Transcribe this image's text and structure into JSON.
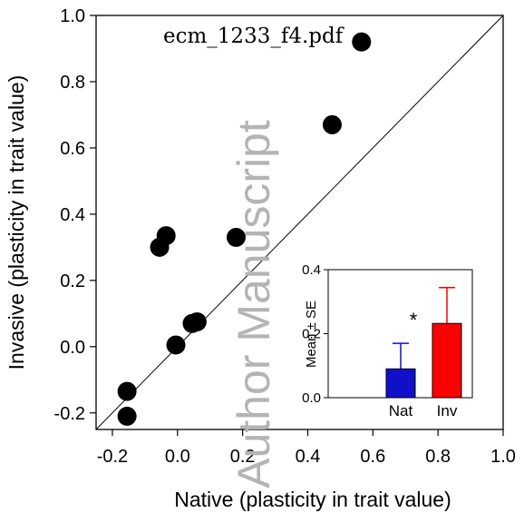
{
  "file_label": "ecm_1233_f4.pdf",
  "watermark": "Author Manuscript",
  "chart_data": [
    {
      "type": "scatter",
      "xlabel": "Native (plasticity in trait value)",
      "ylabel": "Invasive (plasticity in trait value)",
      "xlim": [
        -0.25,
        1.0
      ],
      "ylim": [
        -0.25,
        1.0
      ],
      "xticks": [
        -0.2,
        0.0,
        0.2,
        0.4,
        0.6,
        0.8,
        1.0
      ],
      "xtick_labels": [
        "-0.2",
        "0.0",
        "0.2",
        "0.4",
        "0.6",
        "0.8",
        "1.0"
      ],
      "yticks": [
        -0.2,
        0.0,
        0.2,
        0.4,
        0.6,
        0.8,
        1.0
      ],
      "ytick_labels": [
        "-0.2",
        "0.0",
        "0.2",
        "0.4",
        "0.6",
        "0.8",
        "1.0"
      ],
      "reference_line": "1:1",
      "marker_color": "#000000",
      "points": [
        {
          "x": -0.155,
          "y": -0.21
        },
        {
          "x": -0.155,
          "y": -0.135
        },
        {
          "x": -0.005,
          "y": 0.005
        },
        {
          "x": 0.045,
          "y": 0.07
        },
        {
          "x": 0.06,
          "y": 0.075
        },
        {
          "x": -0.055,
          "y": 0.3
        },
        {
          "x": -0.035,
          "y": 0.335
        },
        {
          "x": 0.18,
          "y": 0.33
        },
        {
          "x": 0.475,
          "y": 0.67
        },
        {
          "x": 0.565,
          "y": 0.92
        }
      ]
    },
    {
      "type": "bar",
      "position": "inset lower-right",
      "categories": [
        "Nat",
        "Inv"
      ],
      "values": [
        0.09,
        0.232
      ],
      "errors": [
        0.08,
        0.112
      ],
      "colors": [
        "#1010c8",
        "#ff0000"
      ],
      "ylabel": "Mean ± SE",
      "ylim": [
        0,
        0.4
      ],
      "yticks": [
        0.0,
        0.2,
        0.4
      ],
      "ytick_labels": [
        "0.0",
        "0.2",
        "0.4"
      ],
      "annotation": "*"
    }
  ]
}
